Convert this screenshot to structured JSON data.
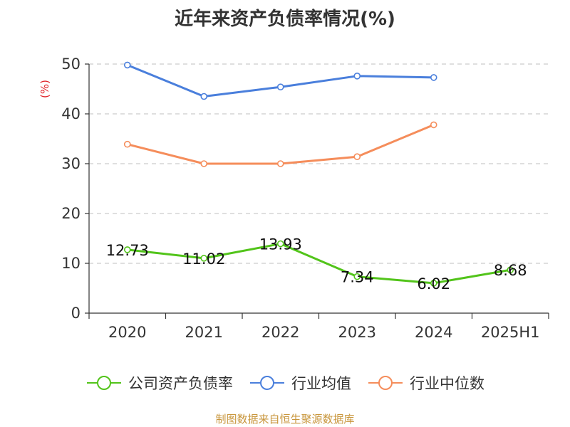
{
  "chart_data": {
    "type": "line",
    "title": "近年来资产负债率情况(%)",
    "ylabel": "(%)",
    "xlabel": "",
    "categories": [
      "2020",
      "2021",
      "2022",
      "2023",
      "2024",
      "2025H1"
    ],
    "ylim": [
      0,
      50
    ],
    "yticks": [
      0,
      10,
      20,
      30,
      40,
      50
    ],
    "grid": true,
    "legend_position": "bottom",
    "series": [
      {
        "name": "公司资产负债率",
        "color": "#52c41a",
        "values": [
          12.73,
          11.02,
          13.93,
          7.34,
          6.02,
          8.68
        ],
        "labels": [
          "12.73",
          "11.02",
          "13.93",
          "7.34",
          "6.02",
          "8.68"
        ]
      },
      {
        "name": "行业均值",
        "color": "#4a7fdc",
        "values": [
          49.8,
          43.5,
          45.4,
          47.6,
          47.3,
          null
        ]
      },
      {
        "name": "行业中位数",
        "color": "#f58d5b",
        "values": [
          33.9,
          30.0,
          30.0,
          31.4,
          37.8,
          null
        ]
      }
    ]
  },
  "source_note": "制图数据来自恒生聚源数据库"
}
